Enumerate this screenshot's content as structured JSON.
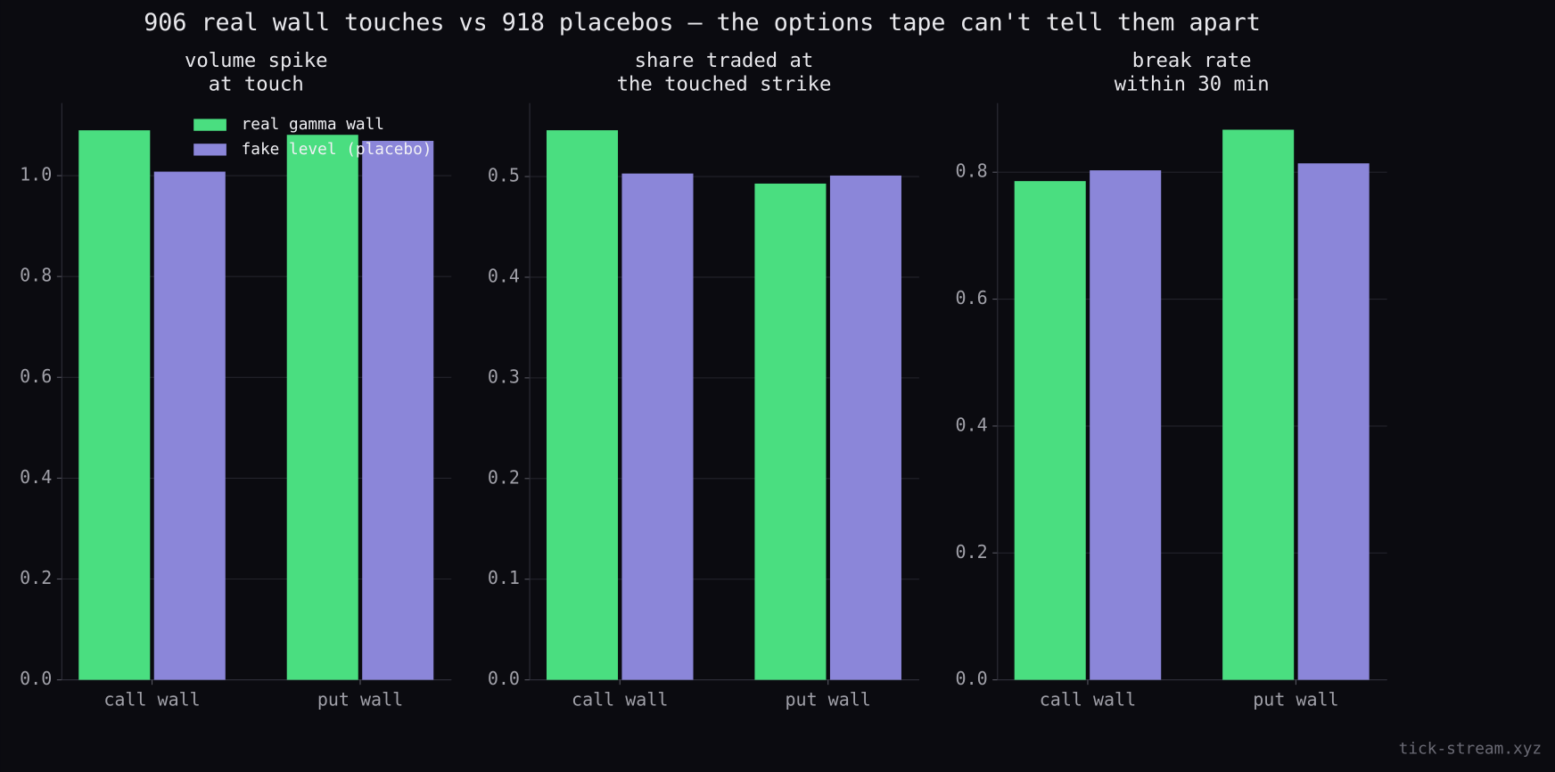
{
  "title": "906 real wall touches vs 918 placebos — the options tape can't tell them apart",
  "footer": "tick-stream.xyz",
  "chart_data": [
    {
      "type": "bar",
      "title": "volume spike\nat touch",
      "categories": [
        "call wall",
        "put wall"
      ],
      "series": [
        {
          "name": "real gamma wall",
          "color": "#4ade80",
          "values": [
            1.09,
            1.081
          ]
        },
        {
          "name": "fake level (placebo)",
          "color": "#8b86d9",
          "values": [
            1.008,
            1.069
          ]
        }
      ],
      "ylim": [
        0,
        1.144
      ],
      "yticks": [
        {
          "value": 0,
          "label": "0.0"
        },
        0.2,
        0.4,
        0.6,
        0.8,
        {
          "value": 1,
          "label": "1.0"
        }
      ],
      "grid": true,
      "legend": "upper center"
    },
    {
      "type": "bar",
      "title": "share traded at\nthe touched strike",
      "categories": [
        "call wall",
        "put wall"
      ],
      "series": [
        {
          "color": "#4ade80",
          "values": [
            0.546,
            0.493
          ]
        },
        {
          "color": "#8b86d9",
          "values": [
            0.503,
            0.501
          ]
        }
      ],
      "ylim": [
        0,
        0.573
      ],
      "yticks": [
        {
          "value": 0,
          "label": "0.0"
        },
        0.1,
        0.2,
        0.3,
        0.4,
        0.5
      ],
      "grid": true
    },
    {
      "type": "bar",
      "title": "break rate\nwithin 30 min",
      "categories": [
        "call wall",
        "put wall"
      ],
      "series": [
        {
          "color": "#4ade80",
          "values": [
            0.786,
            0.867
          ]
        },
        {
          "color": "#8b86d9",
          "values": [
            0.803,
            0.814
          ]
        }
      ],
      "ylim": [
        0,
        0.909
      ],
      "yticks": [
        {
          "value": 0,
          "label": "0.0"
        },
        0.2,
        0.4,
        0.6,
        0.8
      ],
      "grid": true
    }
  ]
}
